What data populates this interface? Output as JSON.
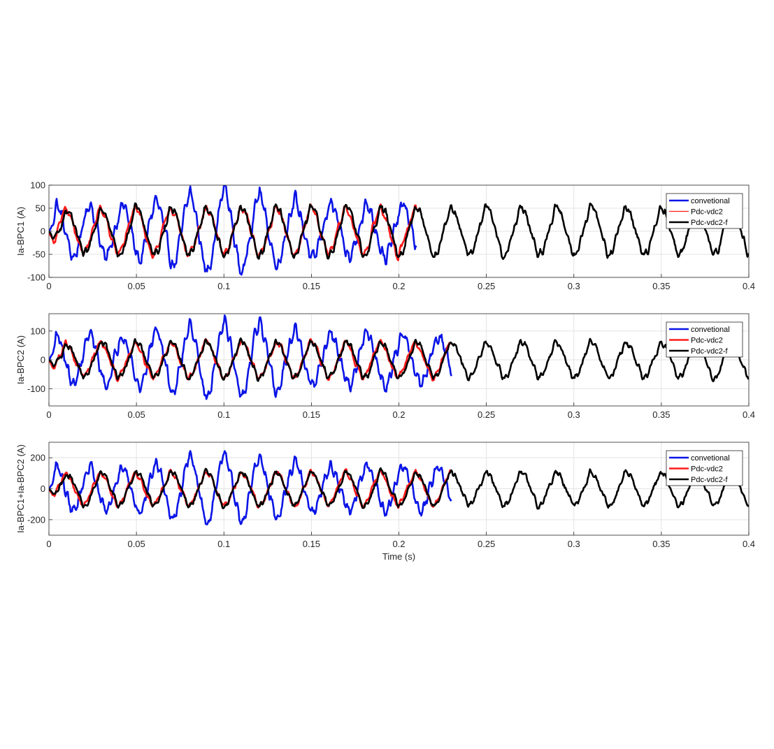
{
  "colors": {
    "convetional": "#0a14e6",
    "Pdc-vdc2": "#ff1a1a",
    "Pdc-vdc2-f": "#000000",
    "grid": "#e3e3e3",
    "axis": "#262626"
  },
  "chart_data": [
    {
      "type": "line",
      "ylabel": "Ia-BPC1 (A)",
      "xlabel": "",
      "xlim": [
        0,
        0.4
      ],
      "ylim": [
        -100,
        100
      ],
      "xticks": [
        "0",
        "0.05",
        "0.1",
        "0.15",
        "0.2",
        "0.25",
        "0.3",
        "0.35",
        "0.4"
      ],
      "yticks": [
        "100",
        "50",
        "0",
        "-50",
        "-100"
      ],
      "ytick_values": [
        100,
        50,
        0,
        -50,
        -100
      ],
      "grid": true,
      "legend": "top-right",
      "legend_entries": [
        "convetional",
        "Pdc-vdc2",
        "Pdc-vdc2-f"
      ],
      "frequency_hz": 50,
      "series": [
        {
          "name": "convetional",
          "x_range": [
            0,
            0.21
          ],
          "amplitude_pk": 97,
          "note_values": "distorted, phase-drifting, peaks up to about 97 A and down to about -95 A"
        },
        {
          "name": "Pdc-vdc2",
          "x_range": [
            0,
            0.21
          ],
          "amplitude_pk": 65
        },
        {
          "name": "Pdc-vdc2-f",
          "x_range": [
            0,
            0.4
          ],
          "amplitude_pk": 67
        }
      ]
    },
    {
      "type": "line",
      "ylabel": "Ia-BPC2 (A)",
      "xlabel": "",
      "xlim": [
        0,
        0.4
      ],
      "ylim": [
        -160,
        160
      ],
      "xticks": [
        "0",
        "0.05",
        "0.1",
        "0.15",
        "0.2",
        "0.25",
        "0.3",
        "0.35",
        "0.4"
      ],
      "yticks": [
        "100",
        "0",
        "-100"
      ],
      "ytick_values": [
        100,
        0,
        -100
      ],
      "grid": true,
      "legend": "top-right",
      "legend_entries": [
        "convetional",
        "Pdc-vdc2",
        "Pdc-vdc2-f"
      ],
      "frequency_hz": 50,
      "series": [
        {
          "name": "convetional",
          "x_range": [
            0,
            0.23
          ],
          "amplitude_pk": 150
        },
        {
          "name": "Pdc-vdc2",
          "x_range": [
            0,
            0.23
          ],
          "amplitude_pk": 80
        },
        {
          "name": "Pdc-vdc2-f",
          "x_range": [
            0,
            0.4
          ],
          "amplitude_pk": 80
        }
      ]
    },
    {
      "type": "line",
      "ylabel": "Ia-BPC1+Ia-BPC2 (A)",
      "xlabel": "Time (s)",
      "xlim": [
        0,
        0.4
      ],
      "ylim": [
        -300,
        300
      ],
      "xticks": [
        "0",
        "0.05",
        "0.1",
        "0.15",
        "0.2",
        "0.25",
        "0.3",
        "0.35",
        "0.4"
      ],
      "yticks": [
        "200",
        "0",
        "-200"
      ],
      "ytick_values": [
        200,
        0,
        -200
      ],
      "grid": true,
      "legend": "top-right",
      "legend_entries": [
        "convetional",
        "Pdc-vdc2",
        "Pdc-vdc2-f"
      ],
      "frequency_hz": 50,
      "series": [
        {
          "name": "convetional",
          "x_range": [
            0,
            0.23
          ],
          "amplitude_pk": 245
        },
        {
          "name": "Pdc-vdc2",
          "x_range": [
            0,
            0.23
          ],
          "amplitude_pk": 140
        },
        {
          "name": "Pdc-vdc2-f",
          "x_range": [
            0,
            0.4
          ],
          "amplitude_pk": 140
        }
      ]
    }
  ]
}
